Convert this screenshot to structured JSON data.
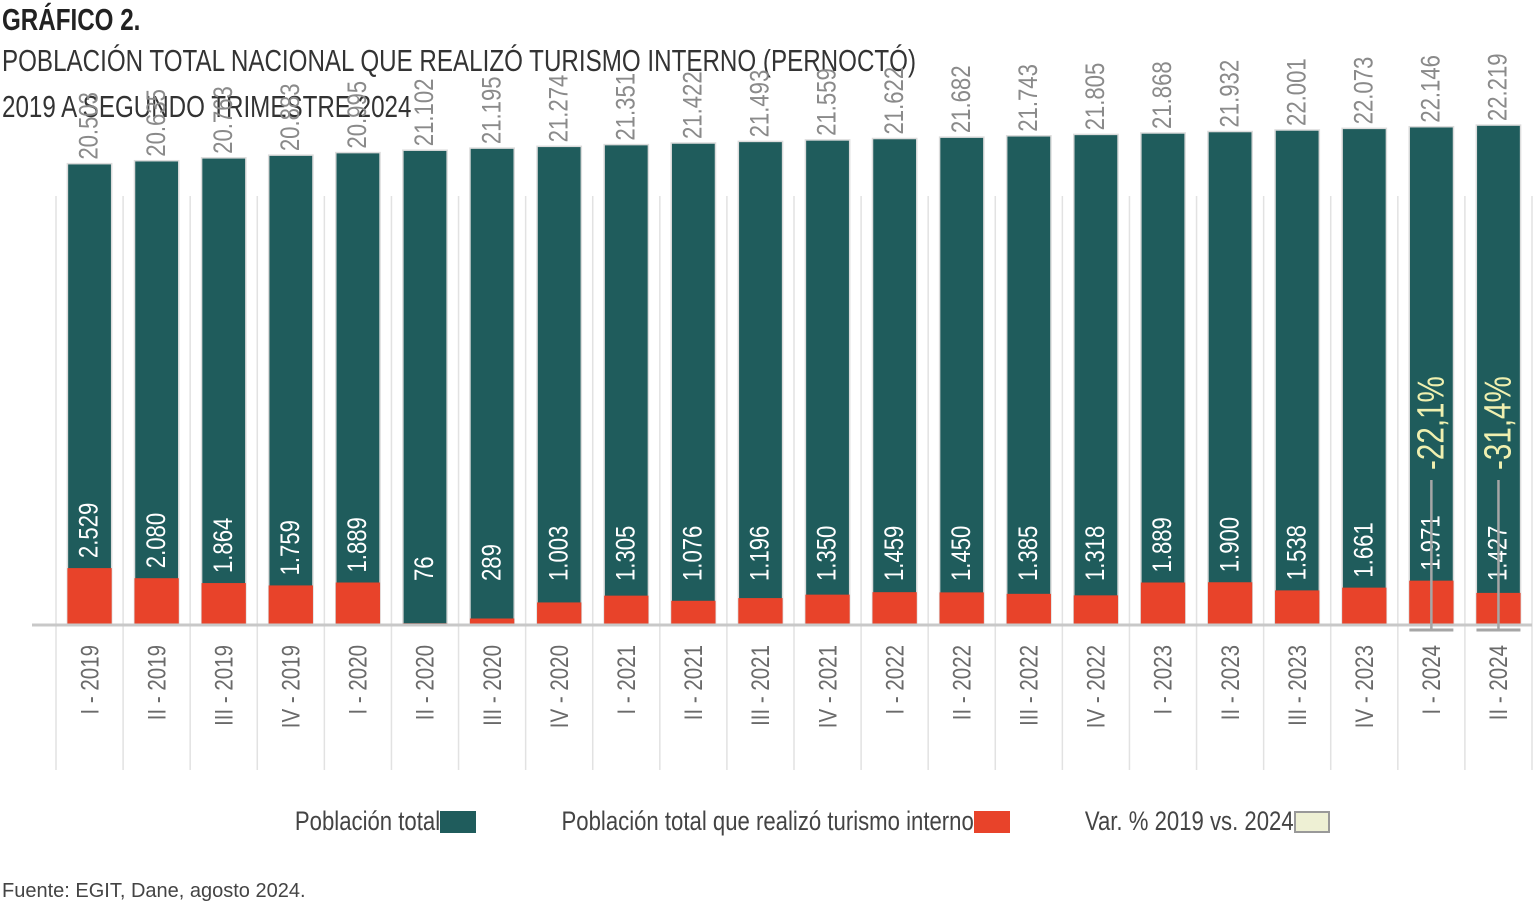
{
  "header": {
    "label": "GRÁFICO 2.",
    "title_line1": "POBLACIÓN TOTAL NACIONAL QUE REALIZÓ TURISMO INTERNO (PERNOCTÓ)",
    "title_line2": "2019 A SEGUNDO TRIMESTRE 2024"
  },
  "legend": {
    "total": "Población total",
    "tourism": "Población total que realizó turismo interno",
    "var": "Var. % 2019 vs. 2024"
  },
  "source": "Fuente: EGIT, Dane, agosto 2024.",
  "colors": {
    "total": "#1f5c5c",
    "tourism": "#e8432a",
    "var": "#eef0d4",
    "total_label": "#8a8a8a",
    "var_text": "#f0f0b0"
  },
  "chart_data": {
    "type": "bar",
    "categories": [
      "I - 2019",
      "II - 2019",
      "III - 2019",
      "IV - 2019",
      "I - 2020",
      "II - 2020",
      "III - 2020",
      "IV - 2020",
      "I - 2021",
      "II - 2021",
      "III - 2021",
      "IV - 2021",
      "I - 2022",
      "II - 2022",
      "III - 2022",
      "IV - 2022",
      "I - 2023",
      "II - 2023",
      "III - 2023",
      "IV - 2023",
      "I - 2024",
      "II - 2024"
    ],
    "series": [
      {
        "name": "Población total",
        "values": [
          20503,
          20635,
          20763,
          20883,
          20995,
          21102,
          21195,
          21274,
          21351,
          21422,
          21493,
          21559,
          21622,
          21682,
          21743,
          21805,
          21868,
          21932,
          22001,
          22073,
          22146,
          22219
        ],
        "labels": [
          "20.503",
          "20.635",
          "20.763",
          "20.883",
          "20.995",
          "21.102",
          "21.195",
          "21.274",
          "21.351",
          "21.422",
          "21.493",
          "21.559",
          "21.622",
          "21.682",
          "21.743",
          "21.805",
          "21.868",
          "21.932",
          "22.001",
          "22.073",
          "22.146",
          "22.219"
        ]
      },
      {
        "name": "Población total que realizó turismo interno",
        "values": [
          2529,
          2080,
          1864,
          1759,
          1889,
          76,
          289,
          1003,
          1305,
          1076,
          1196,
          1350,
          1459,
          1450,
          1385,
          1318,
          1889,
          1900,
          1538,
          1661,
          1971,
          1427
        ],
        "labels": [
          "2.529",
          "2.080",
          "1.864",
          "1.759",
          "1.889",
          "76",
          "289",
          "1.003",
          "1.305",
          "1.076",
          "1.196",
          "1.350",
          "1.459",
          "1.450",
          "1.385",
          "1.318",
          "1.889",
          "1.900",
          "1.538",
          "1.661",
          "1.971",
          "1.427"
        ]
      }
    ],
    "variation": [
      {
        "category": "I - 2024",
        "label": "-22,1%"
      },
      {
        "category": "II - 2024",
        "label": "-31,4%"
      }
    ],
    "ylim": [
      0,
      26000
    ]
  }
}
